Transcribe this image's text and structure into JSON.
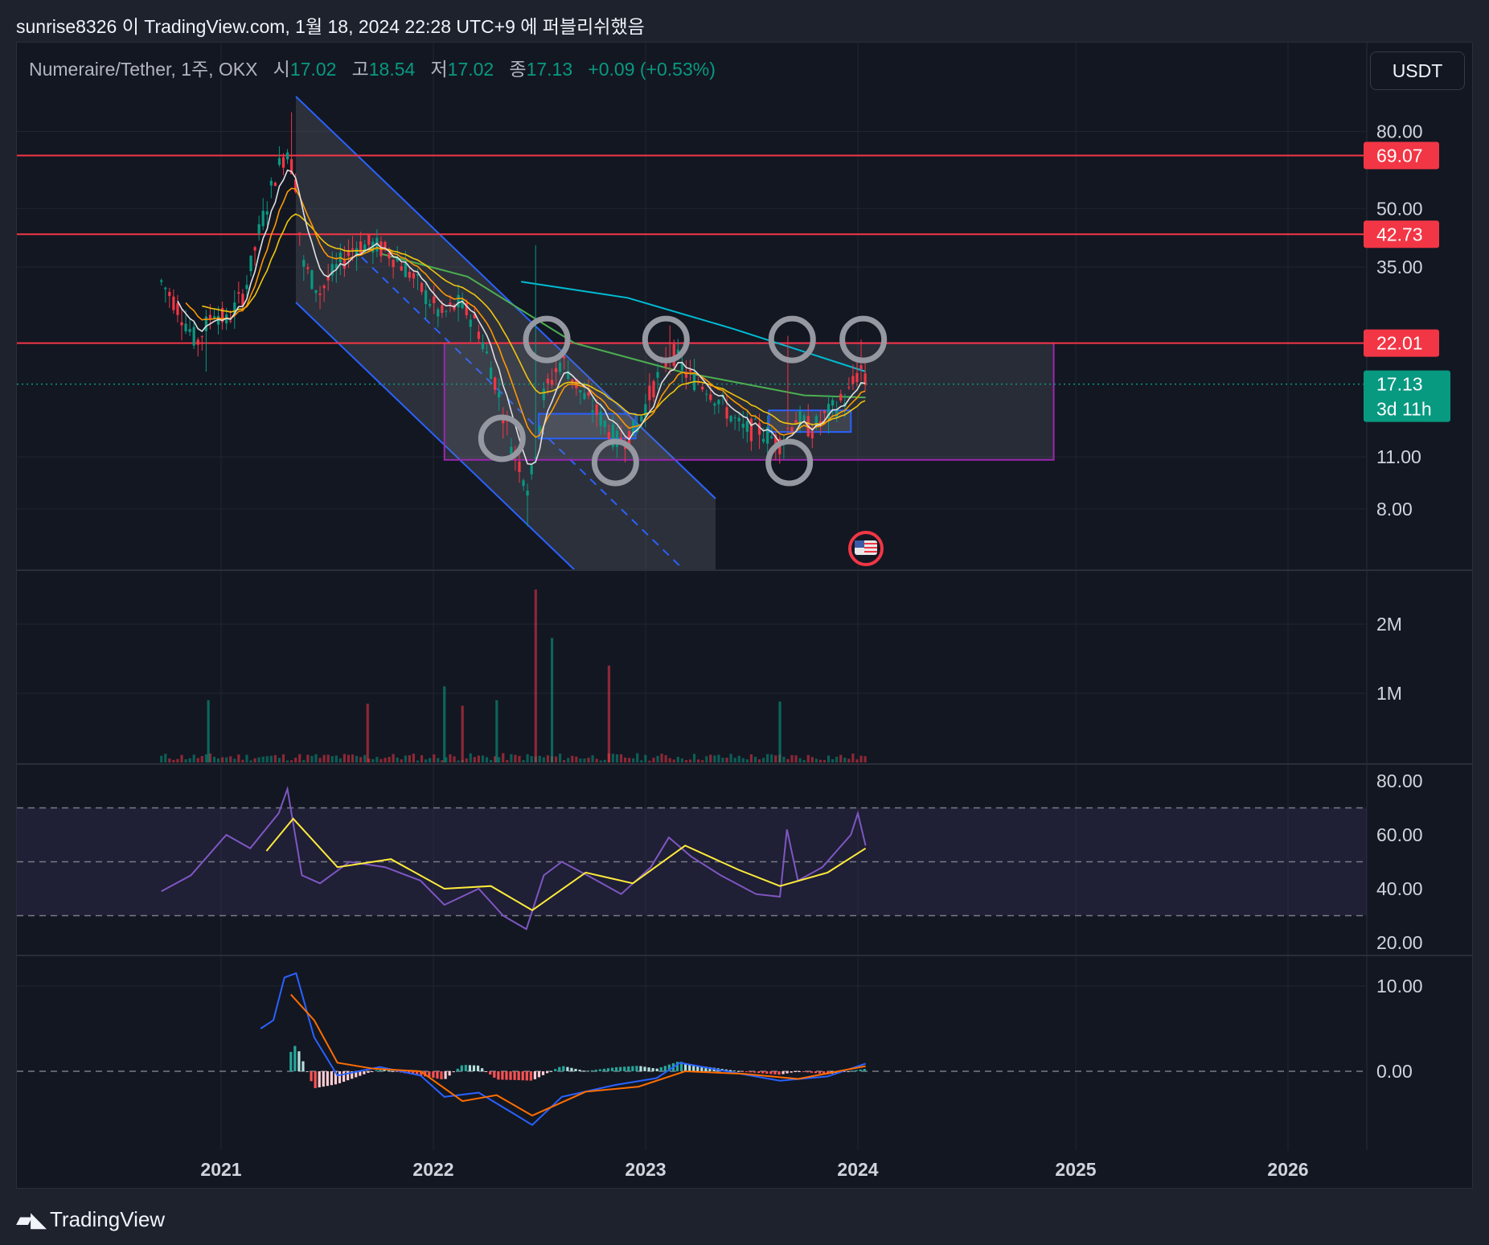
{
  "header": {
    "publisher": "sunrise8326 이 TradingView.com, 1월 18, 2024 22:28 UTC+9 에 퍼블리쉬했음"
  },
  "legend": {
    "symbol": "Numeraire/Tether, 1주, OKX",
    "open_label": "시",
    "open_value": "17.02",
    "high_label": "고",
    "high_value": "18.54",
    "low_label": "저",
    "low_value": "17.02",
    "close_label": "종",
    "close_value": "17.13",
    "change": "+0.09 (+0.53%)"
  },
  "currency_button": "USDT",
  "footer": {
    "brand": "TradingView"
  },
  "colors": {
    "up": "#089981",
    "down": "#f23645",
    "resistance": "#f23645",
    "channel": "#2962ff",
    "range_box": "#9c27b0",
    "ema_fast": "#f0c40c",
    "ema_mid": "#ff9800",
    "ema_slow": "#4caf50",
    "ema_long": "#00bcd4",
    "rsi": "#7e57c2",
    "rsi_ma": "#ffeb3b",
    "macd": "#2962ff",
    "signal": "#ff6d00"
  },
  "chart_data": [
    {
      "type": "candlestick",
      "scale": "log",
      "x_ticks": [
        "2021",
        "2022",
        "2023",
        "2024",
        "2025",
        "2026"
      ],
      "y_ticks": [
        "80.00",
        "50.00",
        "35.00",
        "11.00",
        "8.00"
      ],
      "y_tick_values": [
        80,
        50,
        35,
        11,
        8
      ],
      "price_labels": [
        {
          "text": "69.07",
          "value": 69.07,
          "kind": "resistance"
        },
        {
          "text": "42.73",
          "value": 42.73,
          "kind": "resistance"
        },
        {
          "text": "22.01",
          "value": 22.01,
          "kind": "resistance"
        },
        {
          "text": "17.13",
          "value": 17.13,
          "kind": "last",
          "countdown": "3d 11h"
        }
      ],
      "price_path": [
        [
          "2020-09-20",
          32
        ],
        [
          "2020-10-15",
          28
        ],
        [
          "2020-11-20",
          22
        ],
        [
          "2020-12-20",
          27
        ],
        [
          "2021-01-10",
          25
        ],
        [
          "2021-02-10",
          30
        ],
        [
          "2021-03-10",
          45
        ],
        [
          "2021-04-05",
          62
        ],
        [
          "2021-04-25",
          72
        ],
        [
          "2021-05-10",
          58
        ],
        [
          "2021-05-20",
          36
        ],
        [
          "2021-06-20",
          30
        ],
        [
          "2021-07-20",
          35
        ],
        [
          "2021-08-20",
          40
        ],
        [
          "2021-09-20",
          40
        ],
        [
          "2021-10-20",
          38
        ],
        [
          "2021-11-20",
          34
        ],
        [
          "2021-12-15",
          30
        ],
        [
          "2022-01-15",
          26
        ],
        [
          "2022-02-15",
          28
        ],
        [
          "2022-03-15",
          25
        ],
        [
          "2022-04-15",
          18
        ],
        [
          "2022-05-15",
          12
        ],
        [
          "2022-06-15",
          9
        ],
        [
          "2022-07-10",
          16
        ],
        [
          "2022-08-10",
          20
        ],
        [
          "2022-09-15",
          16
        ],
        [
          "2022-10-15",
          14
        ],
        [
          "2022-11-15",
          12
        ],
        [
          "2022-12-15",
          13
        ],
        [
          "2023-01-15",
          17
        ],
        [
          "2023-02-15",
          21
        ],
        [
          "2023-03-15",
          18
        ],
        [
          "2023-04-15",
          17
        ],
        [
          "2023-05-15",
          15
        ],
        [
          "2023-06-15",
          13
        ],
        [
          "2023-07-15",
          13
        ],
        [
          "2023-08-20",
          12
        ],
        [
          "2023-09-15",
          14
        ],
        [
          "2023-10-15",
          13
        ],
        [
          "2023-11-15",
          14.5
        ],
        [
          "2023-12-15",
          16
        ],
        [
          "2024-01-05",
          19
        ],
        [
          "2024-01-14",
          17.13
        ]
      ],
      "moving_averages": [
        {
          "color": "ema_long",
          "points": [
            [
              "2022-06-01",
              32
            ],
            [
              "2022-12-01",
              29
            ],
            [
              "2023-06-01",
              24
            ],
            [
              "2024-01-14",
              18.5
            ]
          ]
        },
        {
          "color": "ema_slow",
          "points": [
            [
              "2021-10-01",
              38
            ],
            [
              "2022-03-01",
              33
            ],
            [
              "2022-09-01",
              22
            ],
            [
              "2023-03-01",
              18.5
            ],
            [
              "2023-10-01",
              16
            ],
            [
              "2024-01-14",
              15.8
            ]
          ]
        }
      ],
      "drawings": {
        "channel": "descending",
        "range_box": {
          "top": 22.01,
          "bottom": 10.8,
          "from": "2022-01-20",
          "to": "2024-11-25"
        },
        "circles_top": [
          "2022-07-15",
          "2023-02-05",
          "2023-09-10",
          "2024-01-10"
        ],
        "circles_bottom": [
          "2022-05-10",
          "2022-11-10",
          "2023-09-05"
        ]
      }
    },
    {
      "type": "bar",
      "name": "volume",
      "y_ticks": [
        "2M",
        "1M"
      ],
      "y_tick_values": [
        2000000,
        1000000
      ],
      "spikes": [
        [
          "2020-12-10",
          900000
        ],
        [
          "2021-09-10",
          850000
        ],
        [
          "2022-01-20",
          1100000
        ],
        [
          "2022-02-20",
          820000
        ],
        [
          "2022-04-20",
          900000
        ],
        [
          "2022-06-26",
          2500000
        ],
        [
          "2022-07-24",
          1800000
        ],
        [
          "2022-10-30",
          1400000
        ],
        [
          "2023-08-20",
          880000
        ]
      ]
    },
    {
      "type": "line",
      "name": "rsi",
      "y_ticks": [
        "80.00",
        "60.00",
        "40.00",
        "20.00"
      ],
      "y_tick_values": [
        80,
        60,
        40,
        20
      ],
      "bands": [
        70,
        50,
        30
      ],
      "rsi": [
        [
          "2020-09-20",
          39
        ],
        [
          "2020-11-10",
          45
        ],
        [
          "2021-01-10",
          60
        ],
        [
          "2021-02-20",
          55
        ],
        [
          "2021-04-10",
          68
        ],
        [
          "2021-04-25",
          77
        ],
        [
          "2021-05-20",
          45
        ],
        [
          "2021-06-20",
          42
        ],
        [
          "2021-08-10",
          50
        ],
        [
          "2021-10-10",
          48
        ],
        [
          "2021-12-10",
          43
        ],
        [
          "2022-01-20",
          34
        ],
        [
          "2022-03-20",
          40
        ],
        [
          "2022-05-01",
          30
        ],
        [
          "2022-06-10",
          25
        ],
        [
          "2022-07-10",
          45
        ],
        [
          "2022-08-10",
          50
        ],
        [
          "2022-10-01",
          44
        ],
        [
          "2022-11-20",
          38
        ],
        [
          "2023-01-10",
          48
        ],
        [
          "2023-02-10",
          59
        ],
        [
          "2023-03-20",
          52
        ],
        [
          "2023-05-10",
          45
        ],
        [
          "2023-07-10",
          38
        ],
        [
          "2023-08-20",
          37
        ],
        [
          "2023-09-01",
          62
        ],
        [
          "2023-09-20",
          43
        ],
        [
          "2023-11-01",
          48
        ],
        [
          "2023-12-20",
          60
        ],
        [
          "2024-01-01",
          68
        ],
        [
          "2024-01-14",
          56
        ]
      ],
      "rsi_ma": [
        [
          "2021-03-20",
          54
        ],
        [
          "2021-05-05",
          66
        ],
        [
          "2021-07-20",
          48
        ],
        [
          "2021-10-20",
          51
        ],
        [
          "2022-01-20",
          40
        ],
        [
          "2022-04-10",
          41
        ],
        [
          "2022-06-20",
          32
        ],
        [
          "2022-09-20",
          46
        ],
        [
          "2022-12-10",
          42
        ],
        [
          "2023-03-10",
          56
        ],
        [
          "2023-06-10",
          47
        ],
        [
          "2023-08-20",
          41
        ],
        [
          "2023-11-10",
          46
        ],
        [
          "2024-01-14",
          55
        ]
      ]
    },
    {
      "type": "line",
      "name": "macd",
      "y_ticks": [
        "10.00",
        "0.00"
      ],
      "y_tick_values": [
        10,
        0
      ],
      "macd": [
        [
          "2021-03-10",
          5
        ],
        [
          "2021-04-01",
          6
        ],
        [
          "2021-04-20",
          11
        ],
        [
          "2021-05-10",
          11.5
        ],
        [
          "2021-06-10",
          4
        ],
        [
          "2021-07-20",
          -0.5
        ],
        [
          "2021-10-01",
          0.5
        ],
        [
          "2021-12-10",
          -0.5
        ],
        [
          "2022-01-20",
          -3
        ],
        [
          "2022-03-20",
          -2.5
        ],
        [
          "2022-05-20",
          -5
        ],
        [
          "2022-06-20",
          -6.3
        ],
        [
          "2022-08-10",
          -3
        ],
        [
          "2022-11-10",
          -1.6
        ],
        [
          "2023-01-20",
          -0.8
        ],
        [
          "2023-03-01",
          1
        ],
        [
          "2023-05-20",
          0
        ],
        [
          "2023-08-20",
          -1.1
        ],
        [
          "2023-11-10",
          -0.6
        ],
        [
          "2024-01-14",
          0.9
        ]
      ],
      "signal": [
        [
          "2021-05-01",
          9
        ],
        [
          "2021-06-10",
          6
        ],
        [
          "2021-07-20",
          1
        ],
        [
          "2021-09-20",
          0.3
        ],
        [
          "2021-12-10",
          0
        ],
        [
          "2022-02-20",
          -3.5
        ],
        [
          "2022-04-20",
          -2.8
        ],
        [
          "2022-06-20",
          -5.2
        ],
        [
          "2022-09-20",
          -2.4
        ],
        [
          "2022-12-20",
          -1.8
        ],
        [
          "2023-03-10",
          0
        ],
        [
          "2023-06-20",
          -0.3
        ],
        [
          "2023-09-20",
          -0.9
        ],
        [
          "2024-01-14",
          0.6
        ]
      ]
    }
  ]
}
